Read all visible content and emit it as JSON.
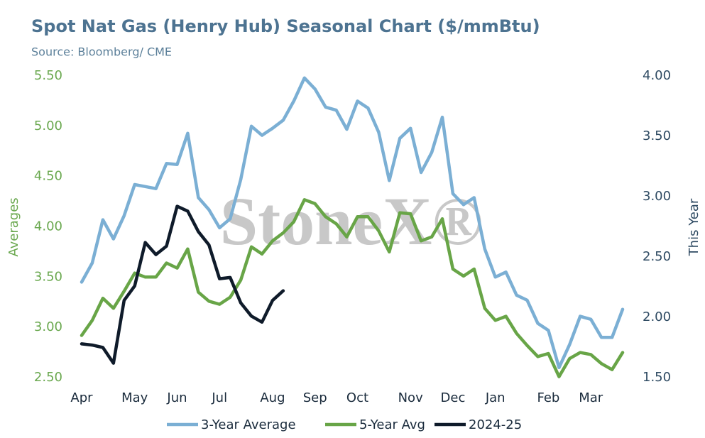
{
  "chart_data": {
    "type": "line",
    "title": "Spot Nat Gas (Henry Hub) Seasonal Chart ($/mmBtu)",
    "subtitle": "Source: Bloomberg/ CME",
    "watermark": "StoneX®",
    "y_label": "Averages",
    "y2_label": "This Year",
    "categories": [
      "Apr",
      null,
      null,
      null,
      null,
      "May",
      null,
      null,
      null,
      "Jun",
      null,
      null,
      null,
      "Jul",
      null,
      null,
      null,
      null,
      "Aug",
      null,
      null,
      null,
      "Sep",
      null,
      null,
      null,
      "Oct",
      null,
      null,
      null,
      null,
      "Nov",
      null,
      null,
      null,
      "Dec",
      null,
      null,
      null,
      "Jan",
      null,
      null,
      null,
      null,
      "Feb",
      null,
      null,
      null,
      "Mar",
      null,
      null,
      null
    ],
    "series": [
      {
        "name": "3-Year Average",
        "color": "#7bafd4",
        "axis": "y",
        "values": [
          3.45,
          3.64,
          4.07,
          3.88,
          4.11,
          4.42,
          4.4,
          4.38,
          4.63,
          4.62,
          4.93,
          4.29,
          4.17,
          3.99,
          4.08,
          4.47,
          5.0,
          4.91,
          4.98,
          5.06,
          5.25,
          5.48,
          5.37,
          5.19,
          5.16,
          4.97,
          5.25,
          5.18,
          4.94,
          4.46,
          4.88,
          4.98,
          4.54,
          4.74,
          5.09,
          4.33,
          4.22,
          4.29,
          3.78,
          3.5,
          3.55,
          3.32,
          3.27,
          3.04,
          2.97,
          2.6,
          2.83,
          3.11,
          3.08,
          2.9,
          2.9,
          3.18
        ]
      },
      {
        "name": "5-Year Avg",
        "color": "#68a547",
        "axis": "y",
        "values": [
          2.92,
          3.07,
          3.29,
          3.19,
          3.36,
          3.54,
          3.5,
          3.5,
          3.64,
          3.59,
          3.78,
          3.35,
          3.26,
          3.23,
          3.3,
          3.47,
          3.8,
          3.73,
          3.86,
          3.94,
          4.05,
          4.27,
          4.23,
          4.1,
          4.03,
          3.9,
          4.1,
          4.1,
          3.96,
          3.75,
          4.14,
          4.13,
          3.86,
          3.9,
          4.08,
          3.58,
          3.51,
          3.58,
          3.19,
          3.07,
          3.11,
          2.94,
          2.82,
          2.71,
          2.74,
          2.51,
          2.69,
          2.75,
          2.73,
          2.64,
          2.58,
          2.75
        ]
      },
      {
        "name": "2024-25",
        "color": "#0f1b2a",
        "axis": "y2",
        "values": [
          1.78,
          1.77,
          1.75,
          1.62,
          2.14,
          2.26,
          2.62,
          2.52,
          2.59,
          2.92,
          2.88,
          2.71,
          2.6,
          2.32,
          2.33,
          2.12,
          2.01,
          1.96,
          2.14,
          2.22,
          null,
          null,
          null,
          null,
          null,
          null,
          null,
          null,
          null,
          null,
          null,
          null,
          null,
          null,
          null,
          null,
          null,
          null,
          null,
          null,
          null,
          null,
          null,
          null,
          null,
          null,
          null,
          null,
          null,
          null,
          null,
          null
        ]
      }
    ],
    "ylim": [
      2.5,
      5.5
    ],
    "yticks": [
      {
        "value": 2.5,
        "label": "2.50"
      },
      {
        "value": 3,
        "label": "3.00"
      },
      {
        "value": 3.5,
        "label": "3.50"
      },
      {
        "value": 4,
        "label": "4.00"
      },
      {
        "value": 4.5,
        "label": "4.50"
      },
      {
        "value": 5,
        "label": "5.00"
      },
      {
        "value": 5.5,
        "label": "5.50"
      }
    ],
    "y2lim": [
      1.5,
      4
    ],
    "y2ticks": [
      {
        "value": 1.5,
        "label": "1.50"
      },
      {
        "value": 2,
        "label": "2.00"
      },
      {
        "value": 2.5,
        "label": "2.50"
      },
      {
        "value": 3,
        "label": "3.00"
      },
      {
        "value": 3.5,
        "label": "3.50"
      },
      {
        "value": 4,
        "label": "4.00"
      }
    ],
    "y_tick_color": "#6aa84f",
    "y2_tick_color": "#2e4a62",
    "grid": false,
    "legend": "bottom"
  }
}
